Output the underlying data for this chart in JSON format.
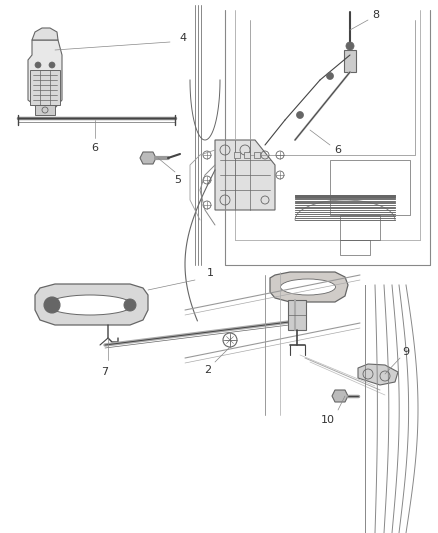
{
  "bg_color": "#ffffff",
  "line_color": "#666666",
  "dark_line": "#444444",
  "label_color": "#333333",
  "fig_width": 4.38,
  "fig_height": 5.33,
  "dpi": 100
}
